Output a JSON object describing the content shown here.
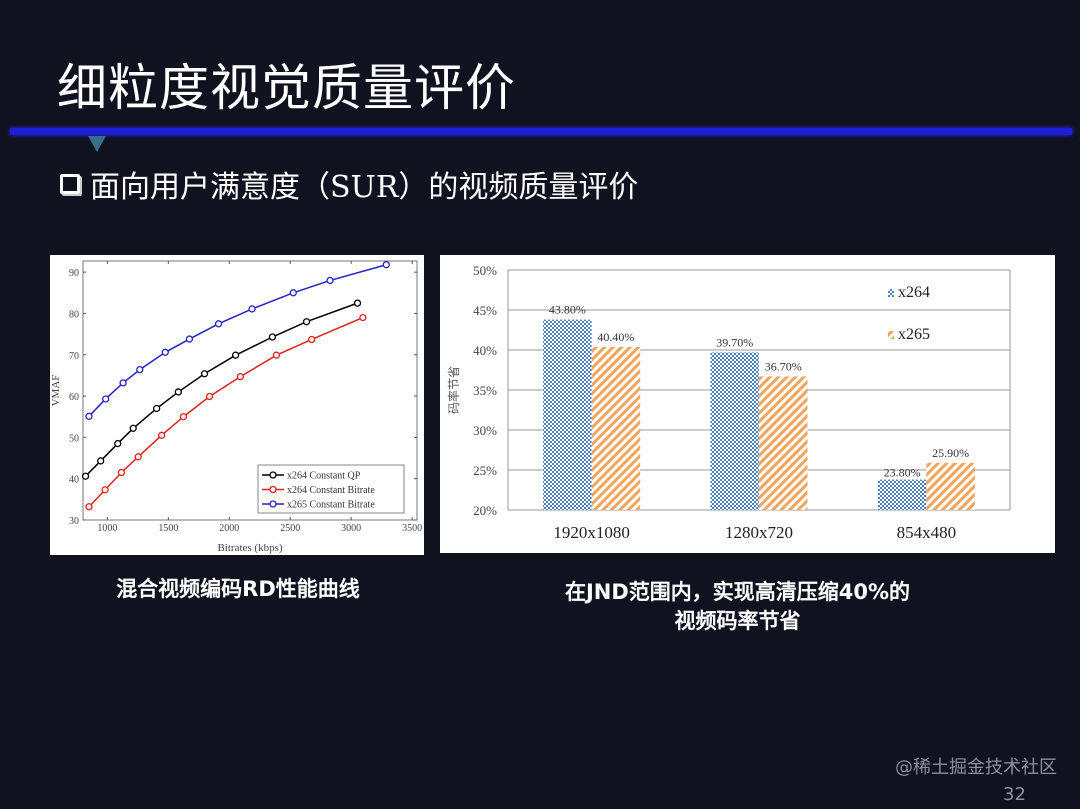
{
  "slide": {
    "title": "细粒度视觉质量评价",
    "subtitle": "面向用户满意度（SUR）的视频质量评价",
    "caption_left": "混合视频编码RD性能曲线",
    "caption_right_line1": "在JND范围内，实现高清压缩40%的",
    "caption_right_line2": "视频码率节省",
    "page_number": "32",
    "watermark": "@稀土掘金技术社区",
    "colors": {
      "background": "#10121f",
      "rule": "#1d1fd6",
      "text": "#ffffff"
    }
  },
  "chart_data": [
    {
      "type": "line",
      "xlabel": "Bitrates (kbps)",
      "ylabel": "VMAF",
      "xlim": [
        800,
        3540
      ],
      "ylim": [
        30,
        92.7
      ],
      "xticks": [
        1000,
        1500,
        2000,
        2500,
        3000,
        3500
      ],
      "yticks": [
        30,
        40,
        50,
        60,
        70,
        80,
        90
      ],
      "grid": false,
      "legend": "bottom-right",
      "marker": "circle",
      "series": [
        {
          "name": "x264 Constant QP",
          "color": "#000000",
          "x": [
            821,
            945,
            1085,
            1212,
            1404,
            1582,
            1797,
            2052,
            2354,
            2634,
            3052
          ],
          "y": [
            40.6,
            44.3,
            48.5,
            52.2,
            57.0,
            61.0,
            65.4,
            69.9,
            74.3,
            78.0,
            82.5
          ]
        },
        {
          "name": "x264 Constant Bitrate",
          "color": "#e0201c",
          "x": [
            849,
            981,
            1115,
            1253,
            1445,
            1624,
            1838,
            2091,
            2387,
            2676,
            3096
          ],
          "y": [
            33.2,
            37.3,
            41.5,
            45.3,
            50.5,
            55.0,
            59.9,
            64.7,
            69.9,
            73.7,
            79.0
          ]
        },
        {
          "name": "x265 Constant Bitrate",
          "color": "#2323c8",
          "x": [
            849,
            986,
            1129,
            1266,
            1475,
            1673,
            1912,
            2187,
            2525,
            2827,
            3288
          ],
          "y": [
            55.1,
            59.3,
            63.2,
            66.4,
            70.6,
            73.8,
            77.5,
            81.1,
            85.0,
            88.0,
            91.8
          ]
        }
      ]
    },
    {
      "type": "bar",
      "ylabel": "码率节省",
      "categories": [
        "1920x1080",
        "1280x720",
        "854x480"
      ],
      "ylim": [
        20,
        50
      ],
      "yticks": [
        "20%",
        "25%",
        "30%",
        "35%",
        "40%",
        "45%",
        "50%"
      ],
      "ytick_values": [
        20,
        25,
        30,
        35,
        40,
        45,
        50
      ],
      "grid": true,
      "legend": "top-right",
      "series": [
        {
          "name": "x264",
          "color": "#4a7ec4",
          "pattern": "checker",
          "values": [
            43.8,
            39.7,
            23.8
          ],
          "labels": [
            "43.80%",
            "39.70%",
            "23.80%"
          ]
        },
        {
          "name": "x265",
          "color": "#f0a45c",
          "pattern": "diagonal-hatch",
          "values": [
            40.4,
            36.7,
            25.9
          ],
          "labels": [
            "40.40%",
            "36.70%",
            "25.90%"
          ]
        }
      ]
    }
  ]
}
